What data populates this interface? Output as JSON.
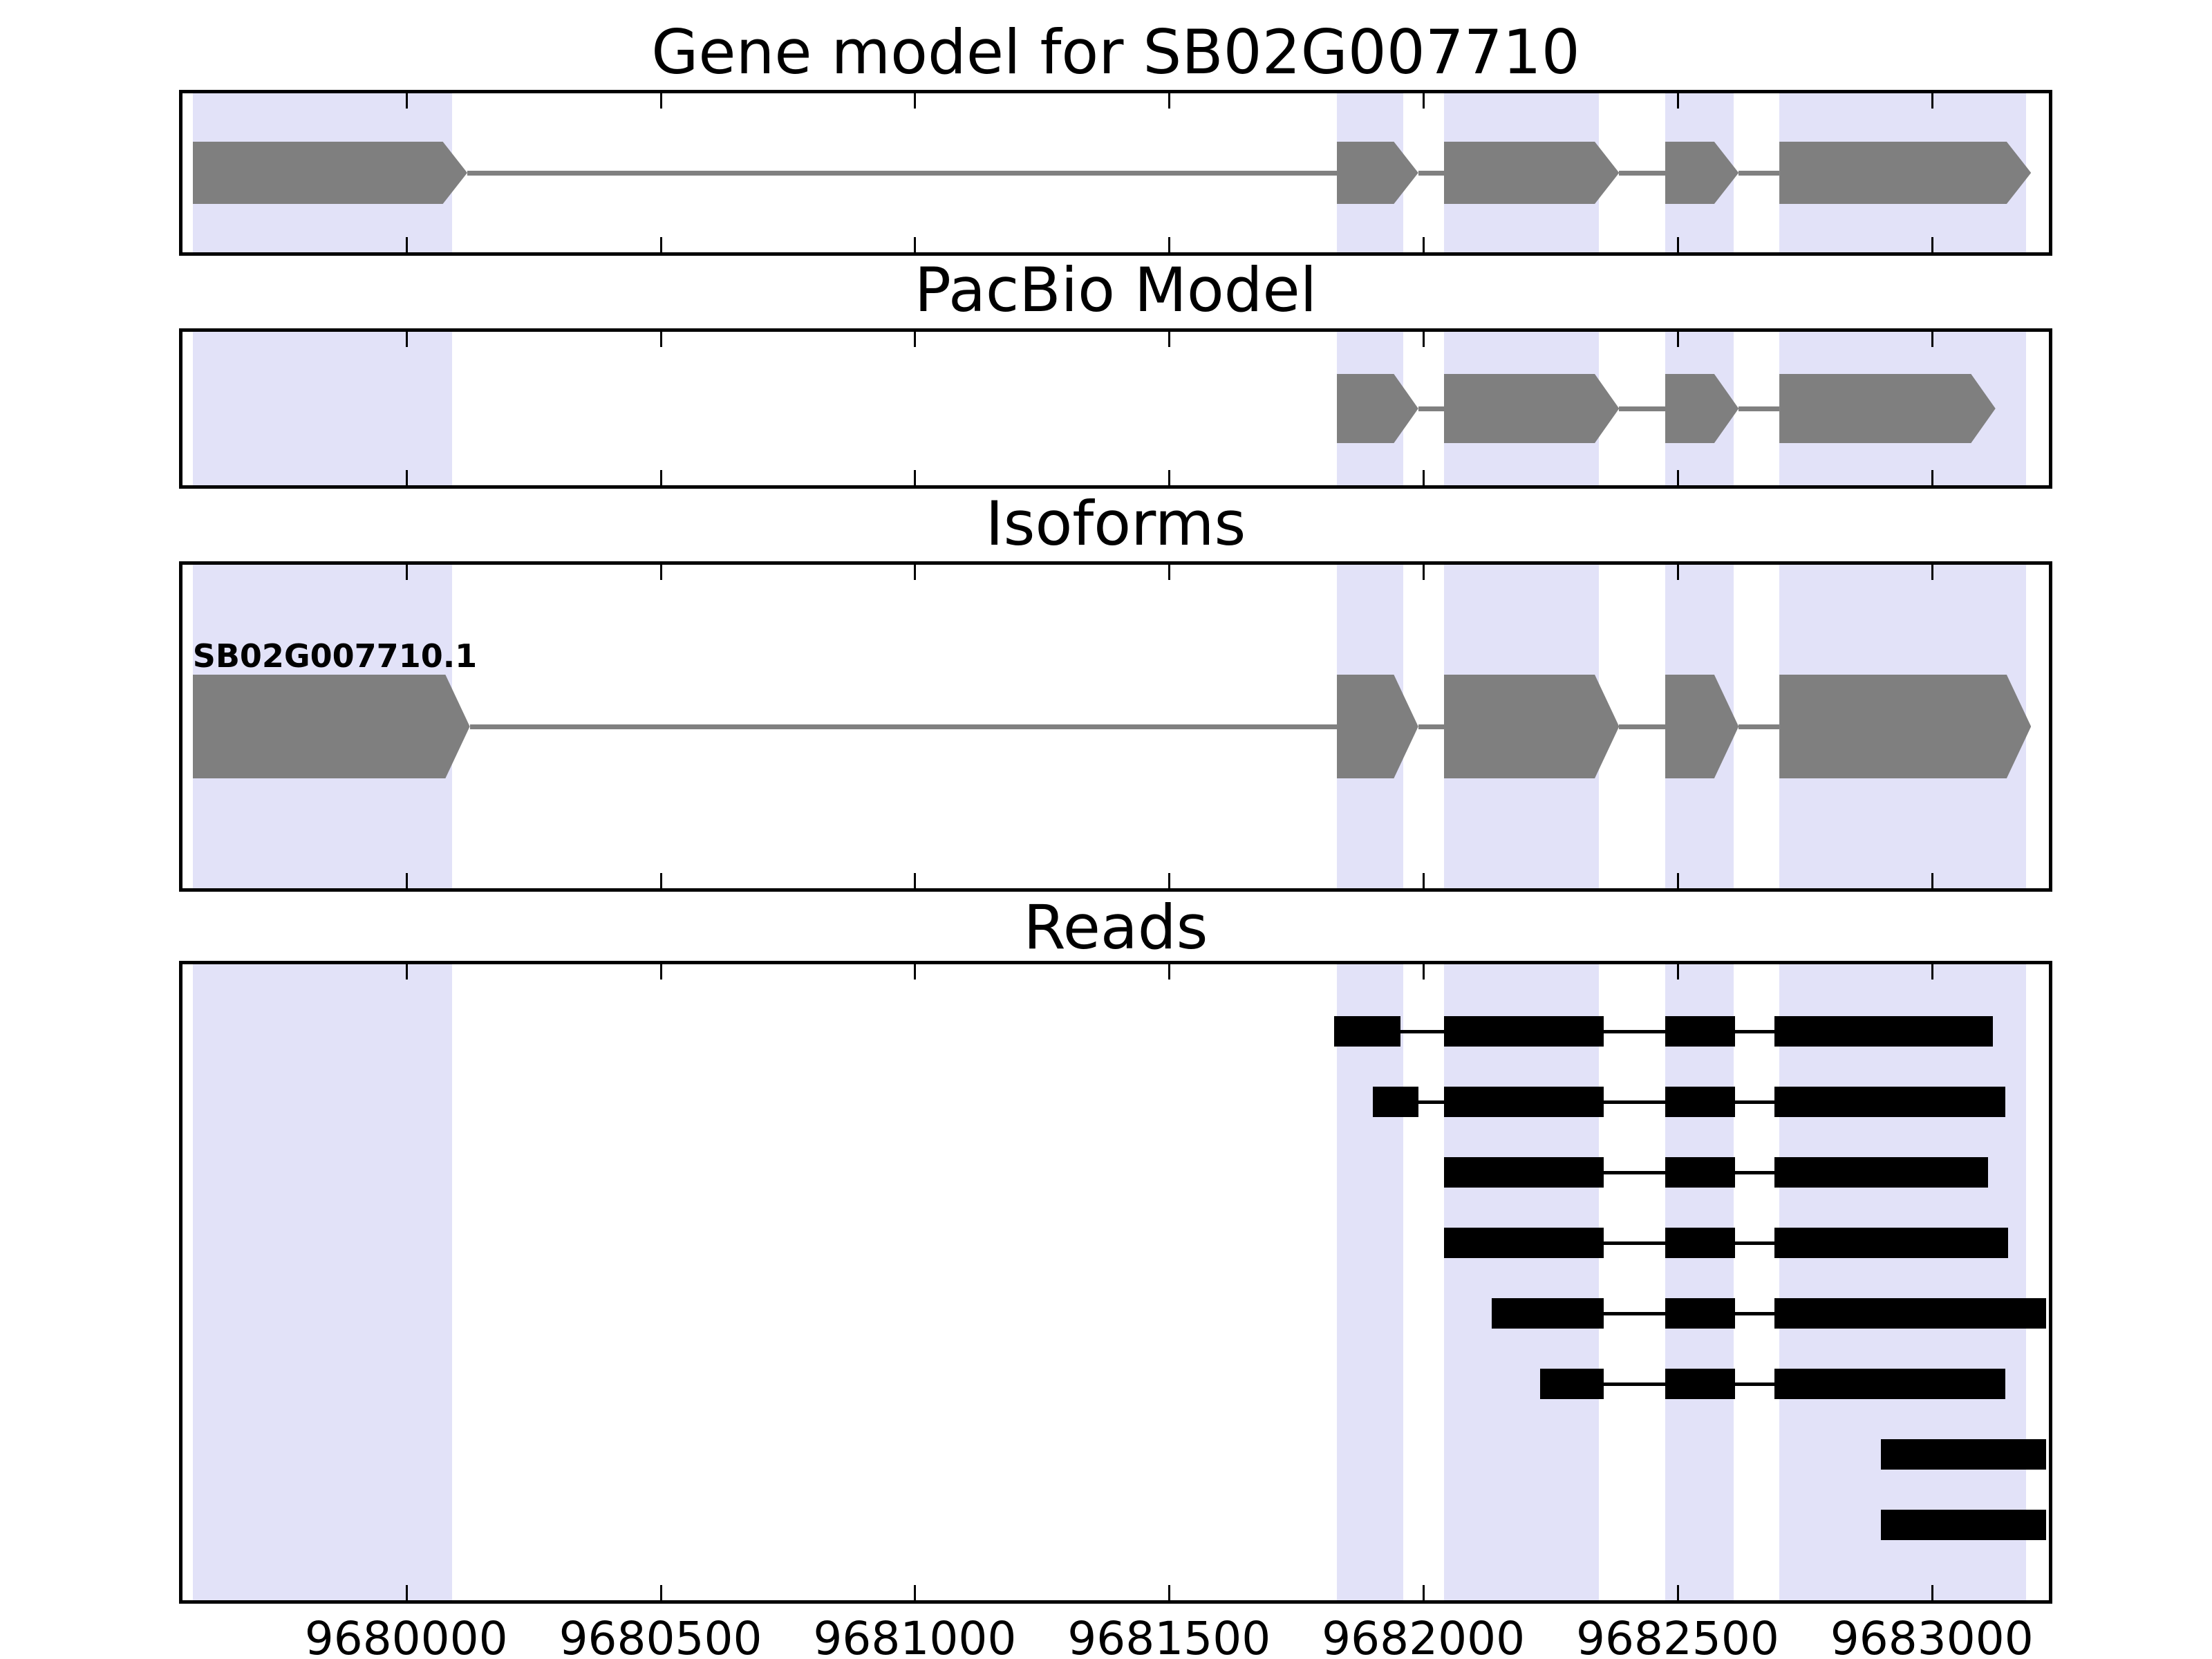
{
  "chart_data": {
    "type": "genomic-feature-tracks",
    "title": "Gene model for SB02G007710",
    "x_range": [
      9679560,
      9683230
    ],
    "x_ticks": [
      9680000,
      9680500,
      9681000,
      9681500,
      9682000,
      9682500,
      9683000
    ],
    "x_tick_labels": [
      "9680000",
      "9680500",
      "9681000",
      "9681500",
      "9682000",
      "9682500",
      "9683000"
    ],
    "highlight_regions": [
      [
        9679580,
        9680090
      ],
      [
        9681830,
        9681960
      ],
      [
        9682040,
        9682345
      ],
      [
        9682475,
        9682610
      ],
      [
        9682700,
        9683185
      ]
    ],
    "colors": {
      "exon": "#7f7f7f",
      "intron_line": "#808080",
      "highlight": "#e2e2f8",
      "read": "#000000",
      "border": "#000000",
      "background": "#ffffff",
      "text": "#000000"
    },
    "panels": [
      {
        "id": "gene-model",
        "title": "Gene model for SB02G007710",
        "features": [
          {
            "start": 9679580,
            "end": 9680120
          },
          {
            "start": 9681830,
            "end": 9681990
          },
          {
            "start": 9682040,
            "end": 9682385
          },
          {
            "start": 9682475,
            "end": 9682620
          },
          {
            "start": 9682700,
            "end": 9683195
          }
        ]
      },
      {
        "id": "pacbio-model",
        "title": "PacBio Model",
        "features": [
          {
            "start": 9681830,
            "end": 9681990
          },
          {
            "start": 9682040,
            "end": 9682385
          },
          {
            "start": 9682475,
            "end": 9682620
          },
          {
            "start": 9682700,
            "end": 9683125
          }
        ]
      },
      {
        "id": "isoforms",
        "title": "Isoforms",
        "isoform_label": "SB02G007710.1",
        "features": [
          {
            "start": 9679580,
            "end": 9680125
          },
          {
            "start": 9681830,
            "end": 9681990
          },
          {
            "start": 9682040,
            "end": 9682385
          },
          {
            "start": 9682475,
            "end": 9682620
          },
          {
            "start": 9682700,
            "end": 9683195
          }
        ]
      },
      {
        "id": "reads",
        "title": "Reads",
        "reads": [
          {
            "blocks": [
              [
                9681825,
                9681955
              ],
              [
                9682040,
                9682355
              ],
              [
                9682475,
                9682613
              ],
              [
                9682690,
                9683120
              ]
            ]
          },
          {
            "blocks": [
              [
                9681900,
                9681990
              ],
              [
                9682040,
                9682355
              ],
              [
                9682475,
                9682613
              ],
              [
                9682690,
                9683145
              ]
            ]
          },
          {
            "blocks": [
              [
                9682040,
                9682355
              ],
              [
                9682475,
                9682613
              ],
              [
                9682690,
                9683110
              ]
            ]
          },
          {
            "blocks": [
              [
                9682040,
                9682355
              ],
              [
                9682475,
                9682613
              ],
              [
                9682690,
                9683150
              ]
            ]
          },
          {
            "blocks": [
              [
                9682135,
                9682355
              ],
              [
                9682475,
                9682613
              ],
              [
                9682690,
                9683225
              ]
            ]
          },
          {
            "blocks": [
              [
                9682230,
                9682355
              ],
              [
                9682475,
                9682613
              ],
              [
                9682690,
                9683145
              ]
            ]
          },
          {
            "blocks": [
              [
                9682900,
                9683225
              ]
            ]
          },
          {
            "blocks": [
              [
                9682900,
                9683225
              ]
            ]
          }
        ]
      }
    ]
  }
}
